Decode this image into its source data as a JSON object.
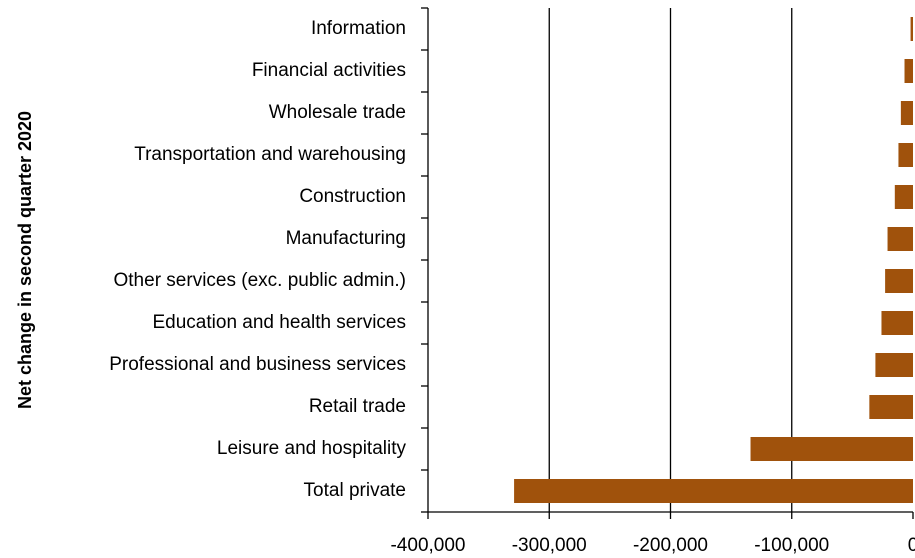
{
  "chart_data": {
    "type": "hbar",
    "y_axis_title": "Net change in second quarter 2020",
    "categories": [
      "Information",
      "Financial activities",
      "Wholesale trade",
      "Transportation and warehousing",
      "Construction",
      "Manufacturing",
      "Other services (exc. public admin.)",
      "Education and health services",
      "Professional and business services",
      "Retail trade",
      "Leisure and hospitality",
      "Total private"
    ],
    "values": [
      -2000,
      -7000,
      -10000,
      -12000,
      -15000,
      -21000,
      -23000,
      -26000,
      -31000,
      -36000,
      -134000,
      -329000
    ],
    "color": "#a0520c",
    "xlim": [
      -400000,
      0
    ],
    "xticks": [
      {
        "value": -400000,
        "label": "-400,000"
      },
      {
        "value": -300000,
        "label": "-300,000"
      },
      {
        "value": -200000,
        "label": "-200,000"
      },
      {
        "value": -100000,
        "label": "-100,000"
      },
      0
    ],
    "grid": true
  }
}
